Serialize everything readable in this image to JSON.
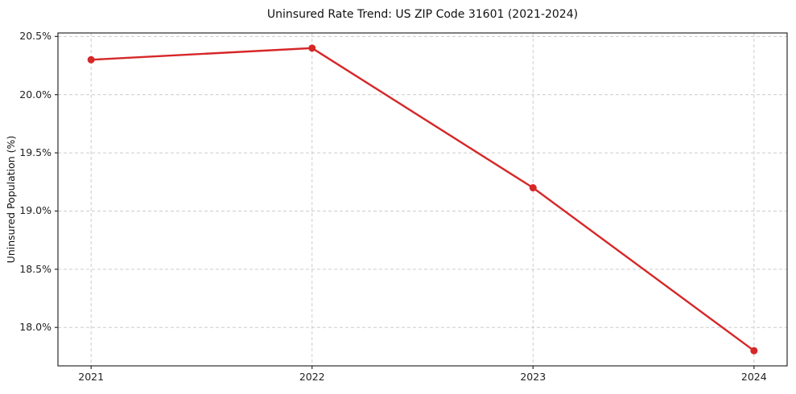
{
  "chart_data": {
    "type": "line",
    "title": "Uninsured Rate Trend: US ZIP Code 31601 (2021-2024)",
    "xlabel": "",
    "ylabel": "Uninsured Population (%)",
    "x": [
      2021,
      2022,
      2023,
      2024
    ],
    "values": [
      20.3,
      20.4,
      19.2,
      17.8
    ],
    "xlim": [
      2020.85,
      2024.15
    ],
    "ylim": [
      17.67,
      20.53
    ],
    "xtick_values": [
      2021,
      2022,
      2023,
      2024
    ],
    "xtick_labels": [
      "2021",
      "2022",
      "2023",
      "2024"
    ],
    "ytick_values": [
      18.0,
      18.5,
      19.0,
      19.5,
      20.0,
      20.5
    ],
    "ytick_labels": [
      "18.0%",
      "18.5%",
      "19.0%",
      "19.5%",
      "20.0%",
      "20.5%"
    ],
    "grid": true,
    "grid_style": "dashed",
    "legend": "none",
    "colors": {
      "line": "#d62728",
      "marker": "#d62728",
      "gridline": "#cccccc",
      "frame": "#2b2b2b",
      "tick": "#2b2b2b"
    }
  }
}
